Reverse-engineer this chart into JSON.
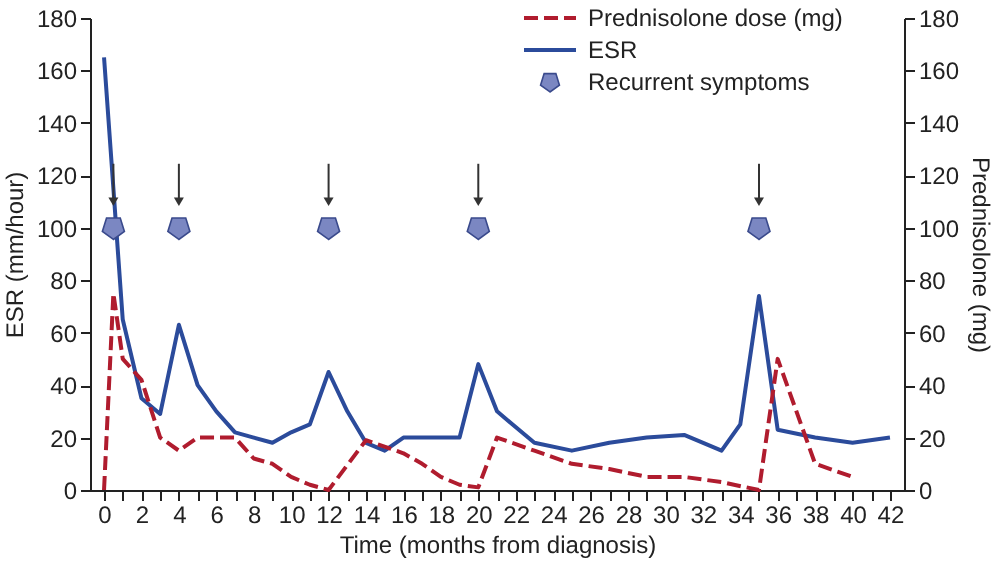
{
  "chart_data": {
    "type": "line",
    "xlabel": "Time (months from diagnosis)",
    "ylabel": "ESR (mm/hour)",
    "y2label": "Prednisolone (mg)",
    "xlim": [
      -0.75,
      42.75
    ],
    "ylim": [
      0,
      180
    ],
    "y2lim": [
      0,
      180
    ],
    "xticks": [
      0,
      {
        "value": 1,
        "label": null
      },
      2,
      {
        "value": 3,
        "label": null
      },
      4,
      {
        "value": 5,
        "label": null
      },
      6,
      {
        "value": 7,
        "label": null
      },
      8,
      {
        "value": 9,
        "label": null
      },
      10,
      {
        "value": 11,
        "label": null
      },
      12,
      {
        "value": 13,
        "label": null
      },
      14,
      {
        "value": 15,
        "label": null
      },
      16,
      {
        "value": 17,
        "label": null
      },
      18,
      {
        "value": 19,
        "label": null
      },
      20,
      {
        "value": 21,
        "label": null
      },
      22,
      {
        "value": 23,
        "label": null
      },
      24,
      {
        "value": 25,
        "label": null
      },
      26,
      {
        "value": 27,
        "label": null
      },
      28,
      {
        "value": 29,
        "label": null
      },
      30,
      {
        "value": 31,
        "label": null
      },
      32,
      {
        "value": 33,
        "label": null
      },
      34,
      {
        "value": 35,
        "label": null
      },
      36,
      {
        "value": 37,
        "label": null
      },
      38,
      {
        "value": 39,
        "label": null
      },
      40,
      {
        "value": 41,
        "label": null
      },
      42
    ],
    "yticks": [
      0,
      20,
      40,
      60,
      80,
      100,
      120,
      140,
      160,
      180
    ],
    "y2ticks": [
      0,
      20,
      40,
      60,
      80,
      100,
      120,
      140,
      160,
      180
    ],
    "grid": false,
    "legend": "top right",
    "series": [
      {
        "name": "Prednisolone dose (mg)",
        "axis": "y2",
        "color": "#b01c2e",
        "line_style": "dashed",
        "marker": "none",
        "x": [
          0,
          0.5,
          1,
          2,
          3,
          4,
          5,
          6,
          7,
          8,
          9,
          10,
          11,
          12,
          14,
          16,
          17,
          18,
          19,
          20,
          21,
          23,
          25,
          27,
          29,
          31,
          33,
          35,
          36,
          38,
          40
        ],
        "values": [
          0,
          75,
          50,
          42,
          20,
          15,
          20,
          20,
          20,
          12,
          10,
          5,
          2,
          0,
          19,
          14,
          10,
          5,
          2,
          1,
          20,
          15,
          10,
          8,
          5,
          5,
          3,
          0,
          50,
          10,
          5
        ]
      },
      {
        "name": "ESR",
        "color": "#2b4b9b",
        "line_style": "solid",
        "marker": "none",
        "x": [
          0,
          1,
          2,
          3,
          4,
          5,
          6,
          7,
          8,
          9,
          10,
          11,
          12,
          13,
          14,
          15,
          16,
          17,
          18,
          19,
          20,
          21,
          23,
          25,
          27,
          29,
          31,
          33,
          34,
          35,
          36,
          38,
          40,
          42
        ],
        "values": [
          165,
          65,
          35,
          29,
          63,
          40,
          30,
          22,
          20,
          18,
          22,
          25,
          45,
          30,
          18,
          15,
          20,
          20,
          20,
          20,
          48,
          30,
          18,
          15,
          18,
          20,
          21,
          15,
          25,
          74,
          23,
          20,
          18,
          20
        ]
      },
      {
        "name": "Recurrent symptoms",
        "type": "scatter",
        "color": "#7b87c2",
        "marker": "star",
        "x": [
          0.5,
          4,
          12,
          20,
          35
        ],
        "values": [
          100,
          100,
          100,
          100,
          100
        ]
      }
    ]
  }
}
